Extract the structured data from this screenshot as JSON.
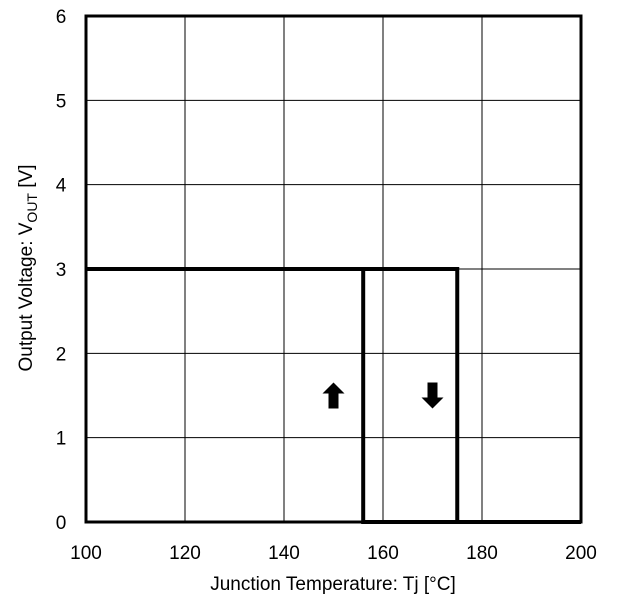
{
  "chart_data": {
    "type": "line",
    "title": "",
    "xlabel": "Junction Temperature: Tj [°C]",
    "ylabel_main": "Output Voltage: V",
    "ylabel_sub": "OUT",
    "ylabel_unit": " [V]",
    "xlim": [
      100,
      200
    ],
    "ylim": [
      0,
      6
    ],
    "x_ticks": [
      100,
      120,
      140,
      160,
      180,
      200
    ],
    "y_ticks": [
      0,
      1,
      2,
      3,
      4,
      5,
      6
    ],
    "grid": true,
    "series": [
      {
        "x": [
          100,
          175,
          175,
          200
        ],
        "y": [
          3,
          3,
          0,
          0
        ]
      },
      {
        "x": [
          200,
          156,
          156,
          100
        ],
        "y": [
          0,
          0,
          3,
          3
        ]
      }
    ],
    "annotations": [
      {
        "symbol": "up-arrow",
        "x": 150,
        "y": 1.5
      },
      {
        "symbol": "down-arrow",
        "x": 170,
        "y": 1.5
      }
    ]
  }
}
